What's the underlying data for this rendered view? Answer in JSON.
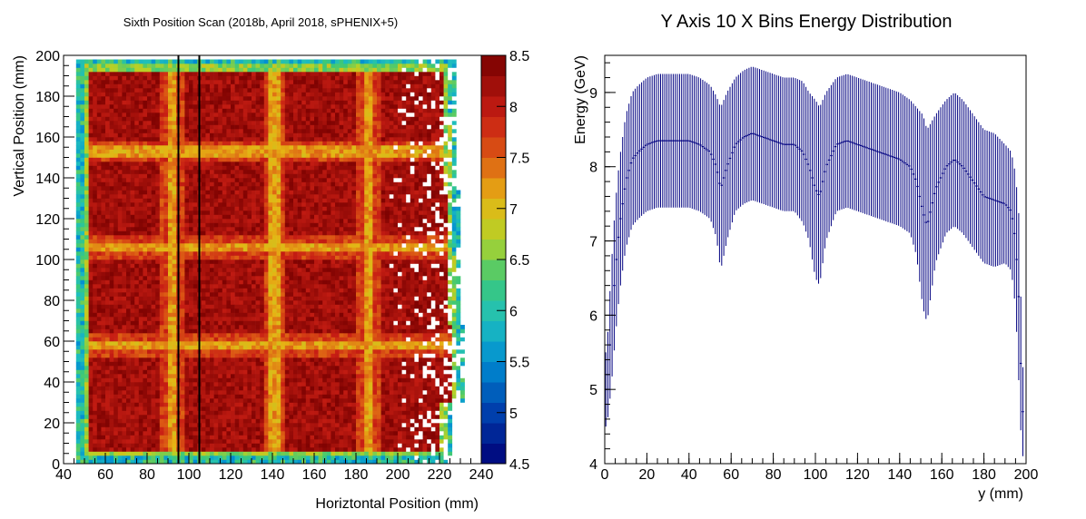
{
  "chart_data": [
    {
      "type": "heatmap",
      "title": "Sixth Position Scan (2018b, April 2018, sPHENIX+5)",
      "xlabel": "Horiztontal Position (mm)",
      "ylabel": "Vertical Position (mm)",
      "xlim": [
        40,
        240
      ],
      "ylim": [
        0,
        200
      ],
      "xticks": [
        "40",
        "60",
        "80",
        "100",
        "120",
        "140",
        "160",
        "180",
        "200",
        "220",
        "240"
      ],
      "yticks": [
        "0",
        "20",
        "40",
        "60",
        "80",
        "100",
        "120",
        "140",
        "160",
        "180",
        "200"
      ],
      "colorbar": {
        "range": [
          4.5,
          8.5
        ],
        "ticks": [
          "4.5",
          "5",
          "5.5",
          "6",
          "6.5",
          "7",
          "7.5",
          "8",
          "8.5"
        ]
      },
      "data_extent": {
        "x": [
          46,
          528
        ],
        "y": [
          0,
          197
        ]
      },
      "data_extent_mm": {
        "x": [
          46,
          228
        ],
        "y": [
          0,
          197
        ]
      },
      "tower_boundaries_x_mm": [
        91,
        140,
        185
      ],
      "tower_boundaries_y_mm": [
        57,
        105,
        152
      ],
      "tower_center_value": 8.2,
      "boundary_value": 7.2,
      "edge_value": 6.0,
      "vertical_markers_x_mm": [
        95,
        105
      ],
      "marker_color": "#000000"
    },
    {
      "type": "line",
      "title": "Y Axis 10 X Bins Energy Distribution",
      "xlabel": "y (mm)",
      "ylabel": "Energy (GeV)",
      "xlim": [
        0,
        200
      ],
      "ylim": [
        4,
        9.5
      ],
      "xticks": [
        "0",
        "20",
        "40",
        "60",
        "80",
        "100",
        "120",
        "140",
        "160",
        "180",
        "200"
      ],
      "yticks": [
        "4",
        "5",
        "6",
        "7",
        "8",
        "9"
      ],
      "series": [
        {
          "color": "#000080",
          "x": [
            1,
            3,
            5,
            7,
            10,
            13,
            16,
            20,
            25,
            30,
            35,
            40,
            45,
            50,
            53,
            55,
            58,
            62,
            66,
            70,
            75,
            80,
            85,
            90,
            94,
            97,
            100,
            102,
            105,
            110,
            115,
            120,
            125,
            130,
            135,
            140,
            145,
            148,
            151,
            153,
            157,
            162,
            166,
            170,
            175,
            180,
            185,
            190,
            193,
            195,
            197,
            198
          ],
          "y": [
            5.0,
            5.8,
            6.6,
            7.2,
            7.8,
            8.1,
            8.2,
            8.3,
            8.35,
            8.35,
            8.35,
            8.35,
            8.3,
            8.2,
            8.0,
            7.7,
            8.0,
            8.3,
            8.4,
            8.45,
            8.4,
            8.35,
            8.3,
            8.3,
            8.2,
            8.0,
            7.7,
            7.6,
            8.0,
            8.3,
            8.35,
            8.3,
            8.25,
            8.2,
            8.15,
            8.1,
            8.0,
            7.8,
            7.4,
            7.2,
            7.7,
            8.0,
            8.1,
            8.0,
            7.8,
            7.6,
            7.55,
            7.5,
            7.4,
            7.0,
            6.0,
            4.7
          ],
          "err": [
            0.5,
            0.8,
            0.9,
            0.9,
            0.9,
            0.9,
            0.9,
            0.9,
            0.9,
            0.9,
            0.9,
            0.9,
            0.9,
            0.9,
            0.95,
            1.1,
            1.0,
            0.9,
            0.9,
            0.9,
            0.9,
            0.9,
            0.9,
            0.9,
            0.95,
            1.0,
            1.2,
            1.2,
            1.0,
            0.9,
            0.9,
            0.9,
            0.9,
            0.9,
            0.9,
            0.9,
            0.9,
            1.0,
            1.3,
            1.3,
            1.0,
            0.9,
            0.9,
            0.9,
            0.9,
            0.9,
            0.9,
            0.8,
            0.8,
            0.9,
            1.2,
            0.6
          ]
        }
      ]
    }
  ]
}
